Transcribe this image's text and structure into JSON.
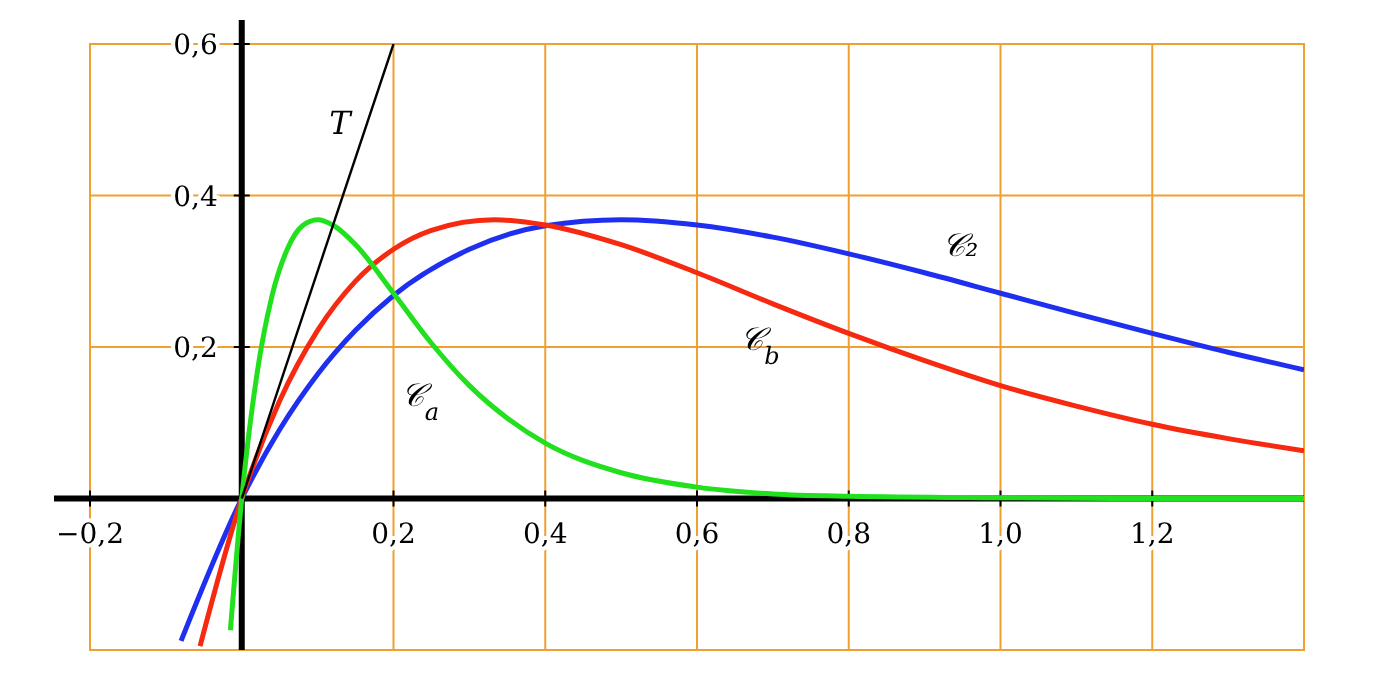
{
  "chart_data": {
    "type": "line",
    "xlim": [
      -0.2,
      1.4
    ],
    "ylim": [
      -0.2,
      0.6
    ],
    "xticks": [
      {
        "value": -0.2,
        "label": "−0,2"
      },
      {
        "value": 0.2,
        "label": "0,2"
      },
      {
        "value": 0.4,
        "label": "0,4"
      },
      {
        "value": 0.6,
        "label": "0,6"
      },
      {
        "value": 0.8,
        "label": "0,8"
      },
      {
        "value": 1.0,
        "label": "1,0"
      },
      {
        "value": 1.2,
        "label": "1,2"
      }
    ],
    "yticks": [
      {
        "value": 0.2,
        "label": "0,2"
      },
      {
        "value": 0.4,
        "label": "0,4"
      },
      {
        "value": 0.6,
        "label": "0,6"
      }
    ],
    "grid": true,
    "marker": "none",
    "line_style": "solid",
    "series": [
      {
        "color": "#1f2ff0",
        "x": [
          -0.08,
          0,
          0.05,
          0.1,
          0.15,
          0.2,
          0.3,
          0.4,
          0.5,
          0.6,
          0.7,
          0.8,
          0.9,
          1.0,
          1.1,
          1.2,
          1.3,
          1.4
        ],
        "values": [
          -0.188,
          0,
          0.091,
          0.164,
          0.222,
          0.268,
          0.329,
          0.36,
          0.368,
          0.361,
          0.345,
          0.323,
          0.298,
          0.271,
          0.244,
          0.218,
          0.193,
          0.17
        ]
      },
      {
        "color": "#f52a10",
        "x": [
          -0.055,
          0,
          0.05,
          0.1,
          0.15,
          0.2,
          0.25,
          0.333,
          0.4,
          0.5,
          0.6,
          0.7,
          0.8,
          0.9,
          1.0,
          1.1,
          1.2,
          1.3,
          1.4
        ],
        "values": [
          -0.195,
          0,
          0.129,
          0.222,
          0.287,
          0.329,
          0.354,
          0.368,
          0.361,
          0.335,
          0.298,
          0.257,
          0.218,
          0.182,
          0.149,
          0.122,
          0.098,
          0.079,
          0.063
        ]
      },
      {
        "color": "#22e01e",
        "x": [
          -0.015,
          0,
          0.02,
          0.04,
          0.06,
          0.08,
          0.1,
          0.12,
          0.15,
          0.2,
          0.25,
          0.3,
          0.35,
          0.4,
          0.5,
          0.6,
          0.7,
          0.8,
          1.0,
          1.2,
          1.4
        ],
        "values": [
          -0.174,
          0,
          0.164,
          0.268,
          0.329,
          0.36,
          0.368,
          0.361,
          0.335,
          0.271,
          0.205,
          0.149,
          0.106,
          0.073,
          0.034,
          0.015,
          0.006,
          0.003,
          0.001,
          0,
          0
        ]
      },
      {
        "color": "#000000",
        "x": [
          0,
          0.2
        ],
        "values": [
          0,
          0.6
        ]
      }
    ],
    "annotations": [
      "T",
      "𝒞$_{a}$",
      "𝒞$_{b}$",
      "𝒞₂"
    ]
  }
}
